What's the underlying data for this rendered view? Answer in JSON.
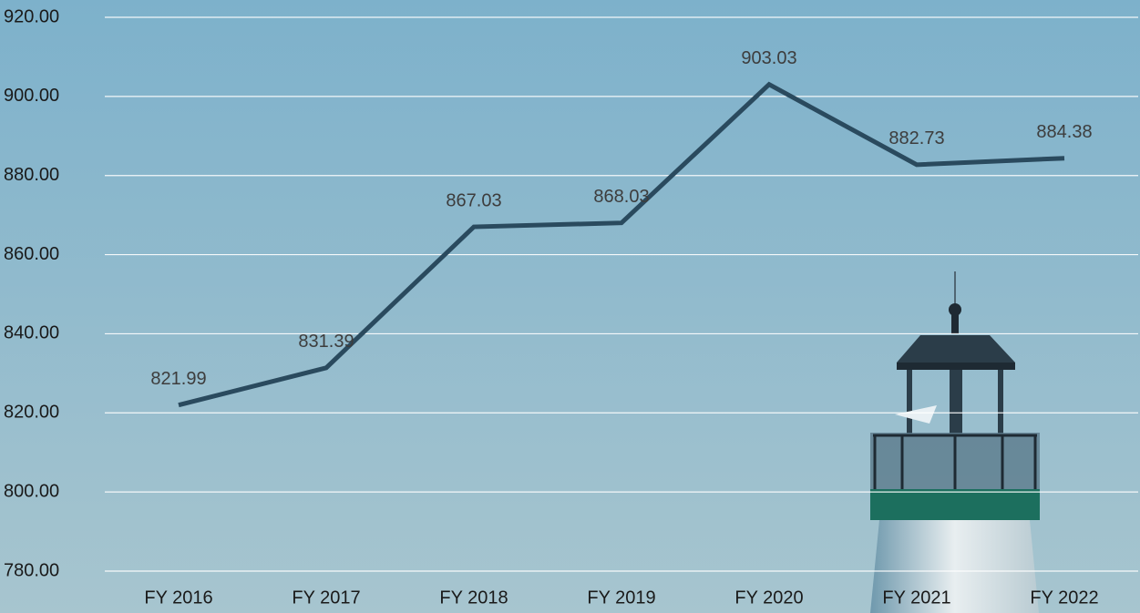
{
  "chart_data": {
    "type": "line",
    "categories": [
      "FY 2016",
      "FY 2017",
      "FY 2018",
      "FY 2019",
      "FY 2020",
      "FY 2021",
      "FY 2022"
    ],
    "values": [
      821.99,
      831.39,
      867.03,
      868.03,
      903.03,
      882.73,
      884.38
    ],
    "color": "#2a4a5e",
    "ylim": [
      780,
      920
    ],
    "yticks": [
      {
        "value": 780,
        "label": "780.00"
      },
      {
        "value": 800,
        "label": "800.00"
      },
      {
        "value": 820,
        "label": "820.00"
      },
      {
        "value": 840,
        "label": "840.00"
      },
      {
        "value": 860,
        "label": "860.00"
      },
      {
        "value": 880,
        "label": "880.00"
      },
      {
        "value": 900,
        "label": "900.00"
      },
      {
        "value": 920,
        "label": "920.00"
      }
    ],
    "grid": true
  }
}
